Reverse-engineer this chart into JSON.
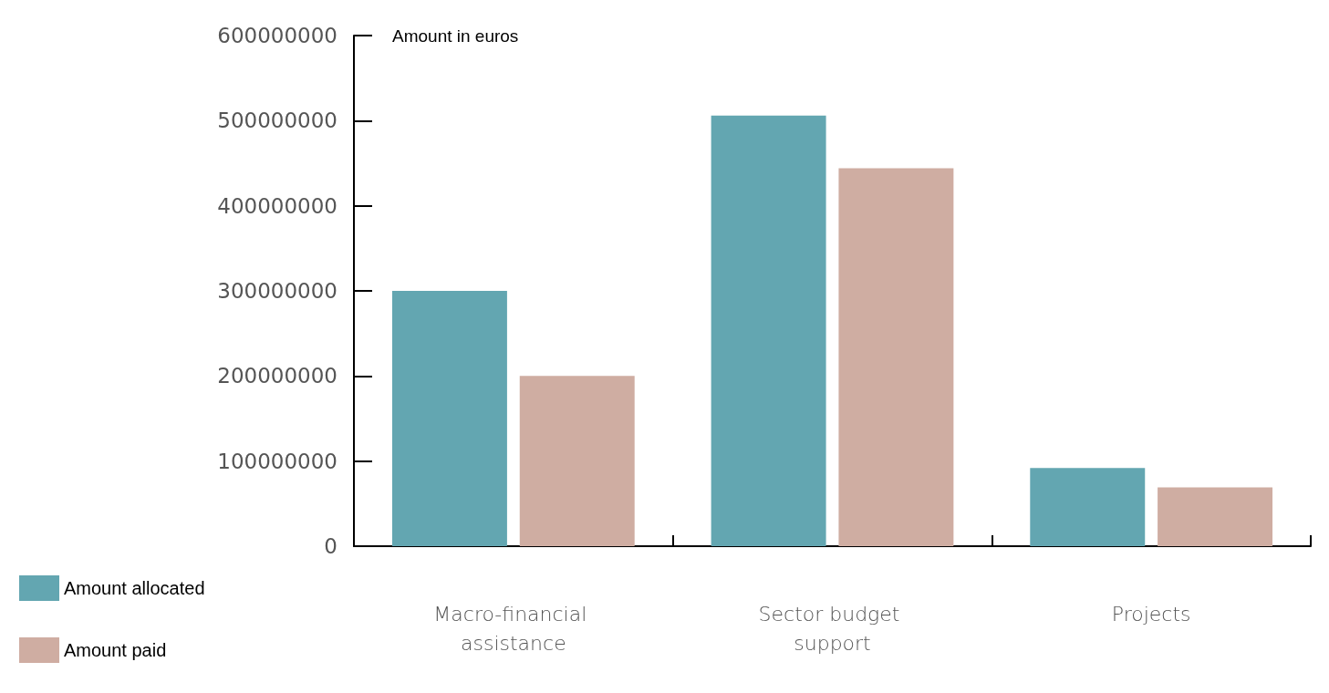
{
  "chart_data": {
    "type": "bar",
    "ylabel": "Amount in euros",
    "categories": [
      "Macro-financial assistance",
      "Sector budget support",
      "Projects"
    ],
    "series": [
      {
        "name": "Amount allocated",
        "color": "#63a6b1",
        "values": [
          300000000,
          506000000,
          92000000
        ]
      },
      {
        "name": "Amount paid",
        "color": "#cfada2",
        "values": [
          200000000,
          444000000,
          69000000
        ]
      }
    ],
    "ylim": [
      0,
      600000000
    ],
    "yticks": [
      0,
      100000000,
      200000000,
      300000000,
      400000000,
      500000000,
      600000000
    ],
    "grid": false,
    "legend": "bottom left"
  }
}
